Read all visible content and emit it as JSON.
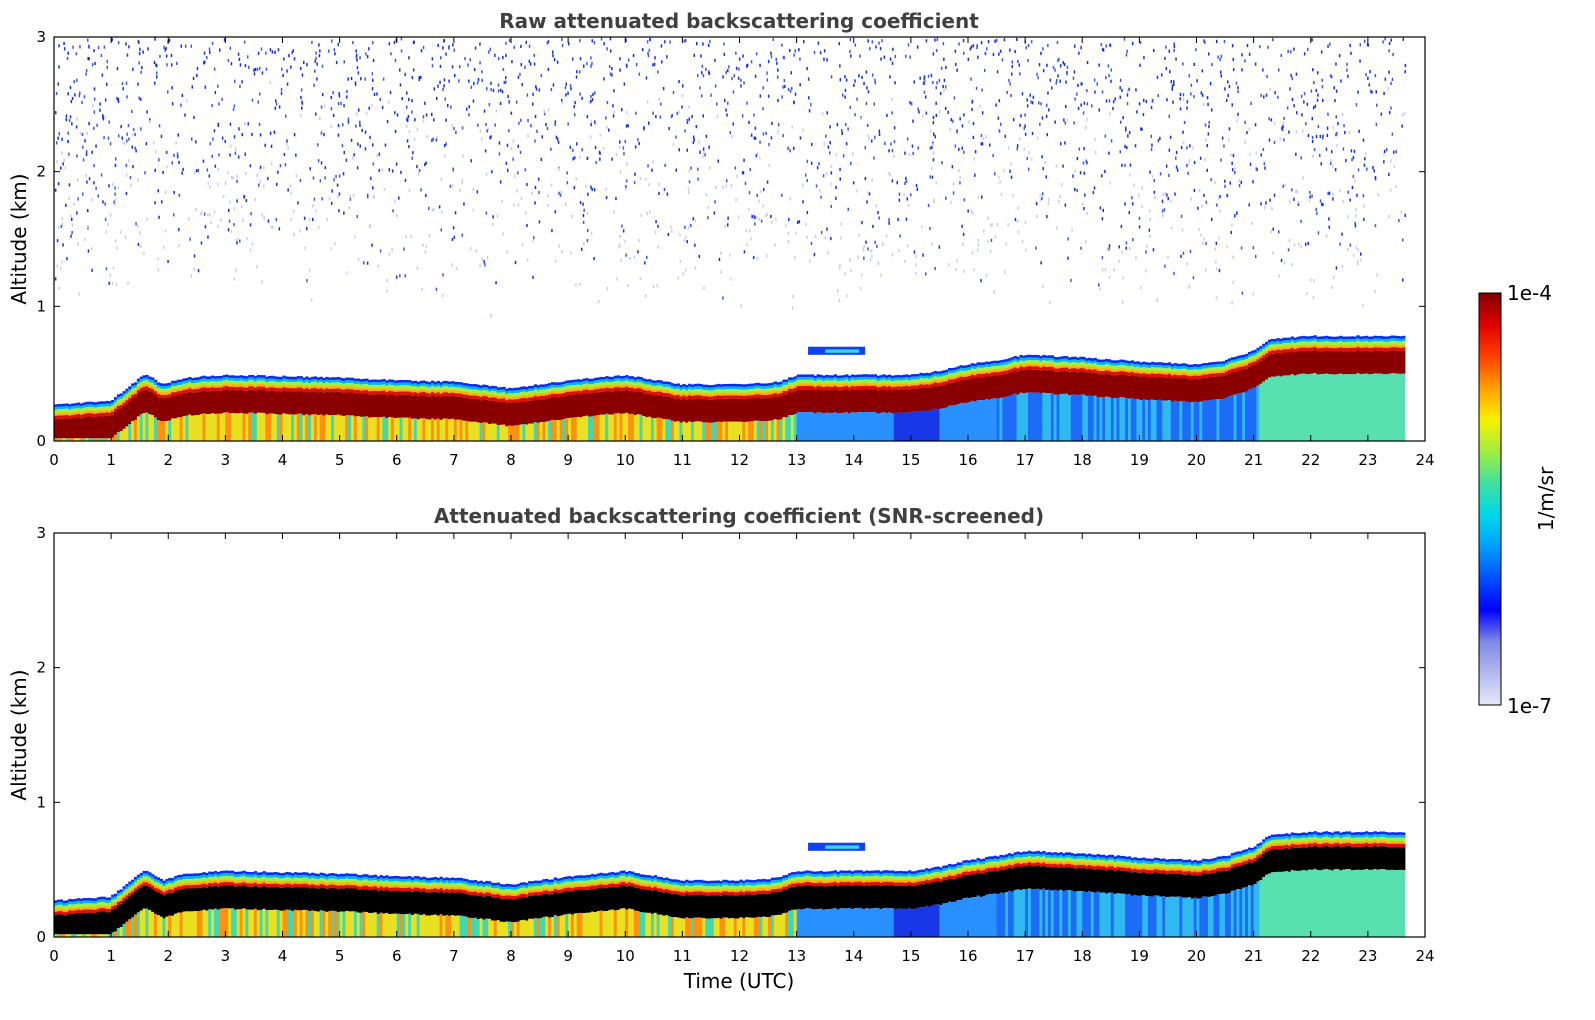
{
  "chart_data": [
    {
      "type": "heatmap",
      "id": "raw",
      "title": "Raw attenuated backscattering coefficient",
      "xlabel": "",
      "ylabel": "Altitude (km)",
      "xlim": [
        0,
        24
      ],
      "ylim": [
        0,
        3
      ],
      "xticks": [
        "0",
        "1",
        "2",
        "3",
        "4",
        "5",
        "6",
        "7",
        "8",
        "9",
        "10",
        "11",
        "12",
        "13",
        "14",
        "15",
        "16",
        "17",
        "18",
        "19",
        "20",
        "21",
        "22",
        "23",
        "24"
      ],
      "yticks": [
        "0",
        "1",
        "2",
        "3"
      ],
      "data_end_hour": 23.65,
      "noise_top_km": 3.0,
      "boundary_layer_top_km": {
        "time": [
          0,
          1,
          1.6,
          1.9,
          2.3,
          3,
          4,
          5,
          6,
          7,
          8,
          9,
          10,
          11,
          12,
          12.7,
          13,
          14,
          15,
          15.5,
          16,
          16.5,
          17,
          18,
          19,
          20,
          20.5,
          21,
          21.3,
          22,
          23,
          23.65
        ],
        "height": [
          0.25,
          0.28,
          0.48,
          0.4,
          0.45,
          0.47,
          0.46,
          0.45,
          0.43,
          0.42,
          0.37,
          0.43,
          0.47,
          0.4,
          0.4,
          0.42,
          0.47,
          0.47,
          0.47,
          0.5,
          0.55,
          0.58,
          0.62,
          0.6,
          0.57,
          0.55,
          0.58,
          0.65,
          0.74,
          0.76,
          0.76,
          0.76
        ]
      },
      "cloud_patch": {
        "time_start": 13.2,
        "time_end": 14.2,
        "height_km": 0.67
      }
    },
    {
      "type": "heatmap",
      "id": "snr",
      "title": "Attenuated backscattering coefficient (SNR-screened)",
      "xlabel": "Time (UTC)",
      "ylabel": "Altitude (km)",
      "xlim": [
        0,
        24
      ],
      "ylim": [
        0,
        3
      ],
      "xticks": [
        "0",
        "1",
        "2",
        "3",
        "4",
        "5",
        "6",
        "7",
        "8",
        "9",
        "10",
        "11",
        "12",
        "13",
        "14",
        "15",
        "16",
        "17",
        "18",
        "19",
        "20",
        "21",
        "22",
        "23",
        "24"
      ],
      "yticks": [
        "0",
        "1",
        "2",
        "3"
      ],
      "data_end_hour": 23.65,
      "saturated_color": "#000000",
      "boundary_layer_top_km": {
        "time": [
          0,
          1,
          1.6,
          1.9,
          2.3,
          3,
          4,
          5,
          6,
          7,
          8,
          9,
          10,
          11,
          12,
          12.7,
          13,
          14,
          15,
          15.5,
          16,
          16.5,
          17,
          18,
          19,
          20,
          20.5,
          21,
          21.3,
          22,
          23,
          23.65
        ],
        "height": [
          0.25,
          0.28,
          0.48,
          0.4,
          0.45,
          0.47,
          0.46,
          0.45,
          0.43,
          0.42,
          0.37,
          0.43,
          0.47,
          0.4,
          0.4,
          0.42,
          0.47,
          0.47,
          0.47,
          0.5,
          0.55,
          0.58,
          0.62,
          0.6,
          0.57,
          0.55,
          0.58,
          0.65,
          0.74,
          0.76,
          0.76,
          0.76
        ]
      },
      "cloud_patch": {
        "time_start": 13.2,
        "time_end": 14.2,
        "height_km": 0.67
      }
    }
  ],
  "colorbar": {
    "label": "1/m/sr",
    "max_label": "1e-4",
    "min_label": "1e-7",
    "colormap": "jet",
    "colors": [
      "#e6e8f8",
      "#b3b8ec",
      "#7f88e6",
      "#0000ff",
      "#0050ff",
      "#00a0ff",
      "#00d8e8",
      "#40e0a0",
      "#a0ee40",
      "#f8f000",
      "#ffa000",
      "#ff4000",
      "#e00000",
      "#800000"
    ]
  }
}
